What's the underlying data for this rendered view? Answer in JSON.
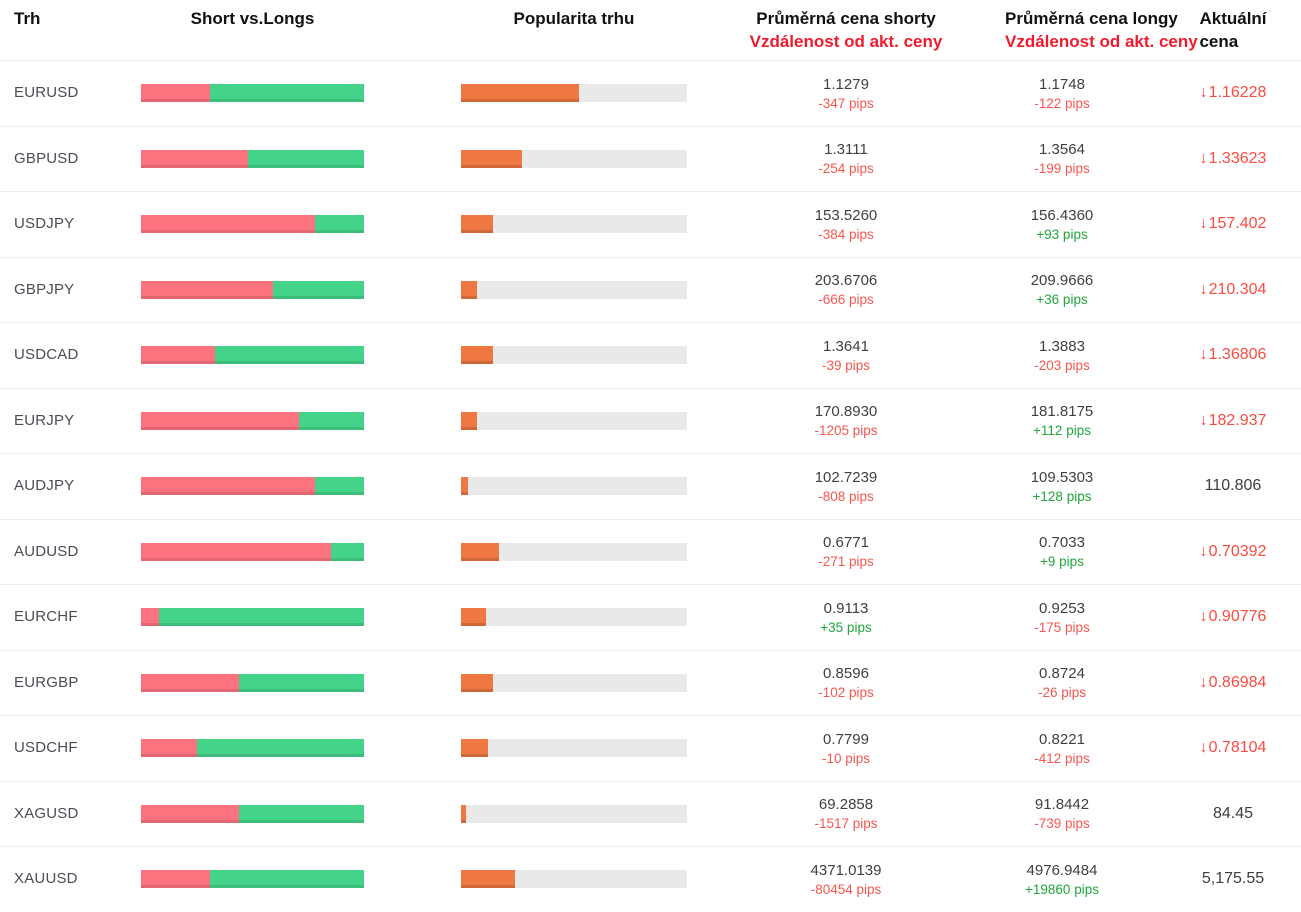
{
  "header": {
    "market": "Trh",
    "short_vs_longs": "Short vs.Longs",
    "popularity": "Popularita trhu",
    "avg_short_price": "Průměrná cena shorty",
    "avg_short_distance": "Vzdálenost od akt. ceny",
    "avg_long_price": "Průměrná cena longy",
    "avg_long_distance": "Vzdálenost od akt. ceny",
    "current_price_line1": "Aktuální",
    "current_price_line2": "cena"
  },
  "icons": {
    "down_arrow": "↓"
  },
  "colors": {
    "shorts_bar": "#fc727f",
    "longs_bar": "#43d389",
    "popularity_bar": "#ee7742",
    "bar_track": "#e9e9e9",
    "negative_text": "#f9564f",
    "positive_text": "#21a63c",
    "price_down_text": "#fb4b41",
    "header_red_text": "#ee1c2e"
  },
  "rows": [
    {
      "market": "EURUSD",
      "shorts_percent": 31,
      "longs_percent": 69,
      "popularity_percent": 52,
      "short_avg": "1.1279",
      "short_pips": "-347 pips",
      "short_pips_dir": "neg",
      "long_avg": "1.1748",
      "long_pips": "-122 pips",
      "long_pips_dir": "neg",
      "price": "1.16228",
      "price_dir": "down"
    },
    {
      "market": "GBPUSD",
      "shorts_percent": 48,
      "longs_percent": 52,
      "popularity_percent": 27,
      "short_avg": "1.3111",
      "short_pips": "-254 pips",
      "short_pips_dir": "neg",
      "long_avg": "1.3564",
      "long_pips": "-199 pips",
      "long_pips_dir": "neg",
      "price": "1.33623",
      "price_dir": "down"
    },
    {
      "market": "USDJPY",
      "shorts_percent": 78,
      "longs_percent": 22,
      "popularity_percent": 14,
      "short_avg": "153.5260",
      "short_pips": "-384 pips",
      "short_pips_dir": "neg",
      "long_avg": "156.4360",
      "long_pips": "+93 pips",
      "long_pips_dir": "pos",
      "price": "157.402",
      "price_dir": "down"
    },
    {
      "market": "GBPJPY",
      "shorts_percent": 59,
      "longs_percent": 41,
      "popularity_percent": 7,
      "short_avg": "203.6706",
      "short_pips": "-666 pips",
      "short_pips_dir": "neg",
      "long_avg": "209.9666",
      "long_pips": "+36 pips",
      "long_pips_dir": "pos",
      "price": "210.304",
      "price_dir": "down"
    },
    {
      "market": "USDCAD",
      "shorts_percent": 33,
      "longs_percent": 67,
      "popularity_percent": 14,
      "short_avg": "1.3641",
      "short_pips": "-39 pips",
      "short_pips_dir": "neg",
      "long_avg": "1.3883",
      "long_pips": "-203 pips",
      "long_pips_dir": "neg",
      "price": "1.36806",
      "price_dir": "down"
    },
    {
      "market": "EURJPY",
      "shorts_percent": 71,
      "longs_percent": 29,
      "popularity_percent": 7,
      "short_avg": "170.8930",
      "short_pips": "-1205 pips",
      "short_pips_dir": "neg",
      "long_avg": "181.8175",
      "long_pips": "+112 pips",
      "long_pips_dir": "pos",
      "price": "182.937",
      "price_dir": "down"
    },
    {
      "market": "AUDJPY",
      "shorts_percent": 78,
      "longs_percent": 22,
      "popularity_percent": 3,
      "short_avg": "102.7239",
      "short_pips": "-808 pips",
      "short_pips_dir": "neg",
      "long_avg": "109.5303",
      "long_pips": "+128 pips",
      "long_pips_dir": "pos",
      "price": "110.806",
      "price_dir": "none"
    },
    {
      "market": "AUDUSD",
      "shorts_percent": 85,
      "longs_percent": 15,
      "popularity_percent": 17,
      "short_avg": "0.6771",
      "short_pips": "-271 pips",
      "short_pips_dir": "neg",
      "long_avg": "0.7033",
      "long_pips": "+9 pips",
      "long_pips_dir": "pos",
      "price": "0.70392",
      "price_dir": "down"
    },
    {
      "market": "EURCHF",
      "shorts_percent": 8,
      "longs_percent": 92,
      "popularity_percent": 11,
      "short_avg": "0.9113",
      "short_pips": "+35 pips",
      "short_pips_dir": "pos",
      "long_avg": "0.9253",
      "long_pips": "-175 pips",
      "long_pips_dir": "neg",
      "price": "0.90776",
      "price_dir": "down"
    },
    {
      "market": "EURGBP",
      "shorts_percent": 44,
      "longs_percent": 56,
      "popularity_percent": 14,
      "short_avg": "0.8596",
      "short_pips": "-102 pips",
      "short_pips_dir": "neg",
      "long_avg": "0.8724",
      "long_pips": "-26 pips",
      "long_pips_dir": "neg",
      "price": "0.86984",
      "price_dir": "down"
    },
    {
      "market": "USDCHF",
      "shorts_percent": 25,
      "longs_percent": 75,
      "popularity_percent": 12,
      "short_avg": "0.7799",
      "short_pips": "-10 pips",
      "short_pips_dir": "neg",
      "long_avg": "0.8221",
      "long_pips": "-412 pips",
      "long_pips_dir": "neg",
      "price": "0.78104",
      "price_dir": "down"
    },
    {
      "market": "XAGUSD",
      "shorts_percent": 44,
      "longs_percent": 56,
      "popularity_percent": 2,
      "short_avg": "69.2858",
      "short_pips": "-1517 pips",
      "short_pips_dir": "neg",
      "long_avg": "91.8442",
      "long_pips": "-739 pips",
      "long_pips_dir": "neg",
      "price": "84.45",
      "price_dir": "none"
    },
    {
      "market": "XAUUSD",
      "shorts_percent": 31,
      "longs_percent": 69,
      "popularity_percent": 24,
      "short_avg": "4371.0139",
      "short_pips": "-80454 pips",
      "short_pips_dir": "neg",
      "long_avg": "4976.9484",
      "long_pips": "+19860 pips",
      "long_pips_dir": "pos",
      "price": "5,175.55",
      "price_dir": "none"
    }
  ]
}
